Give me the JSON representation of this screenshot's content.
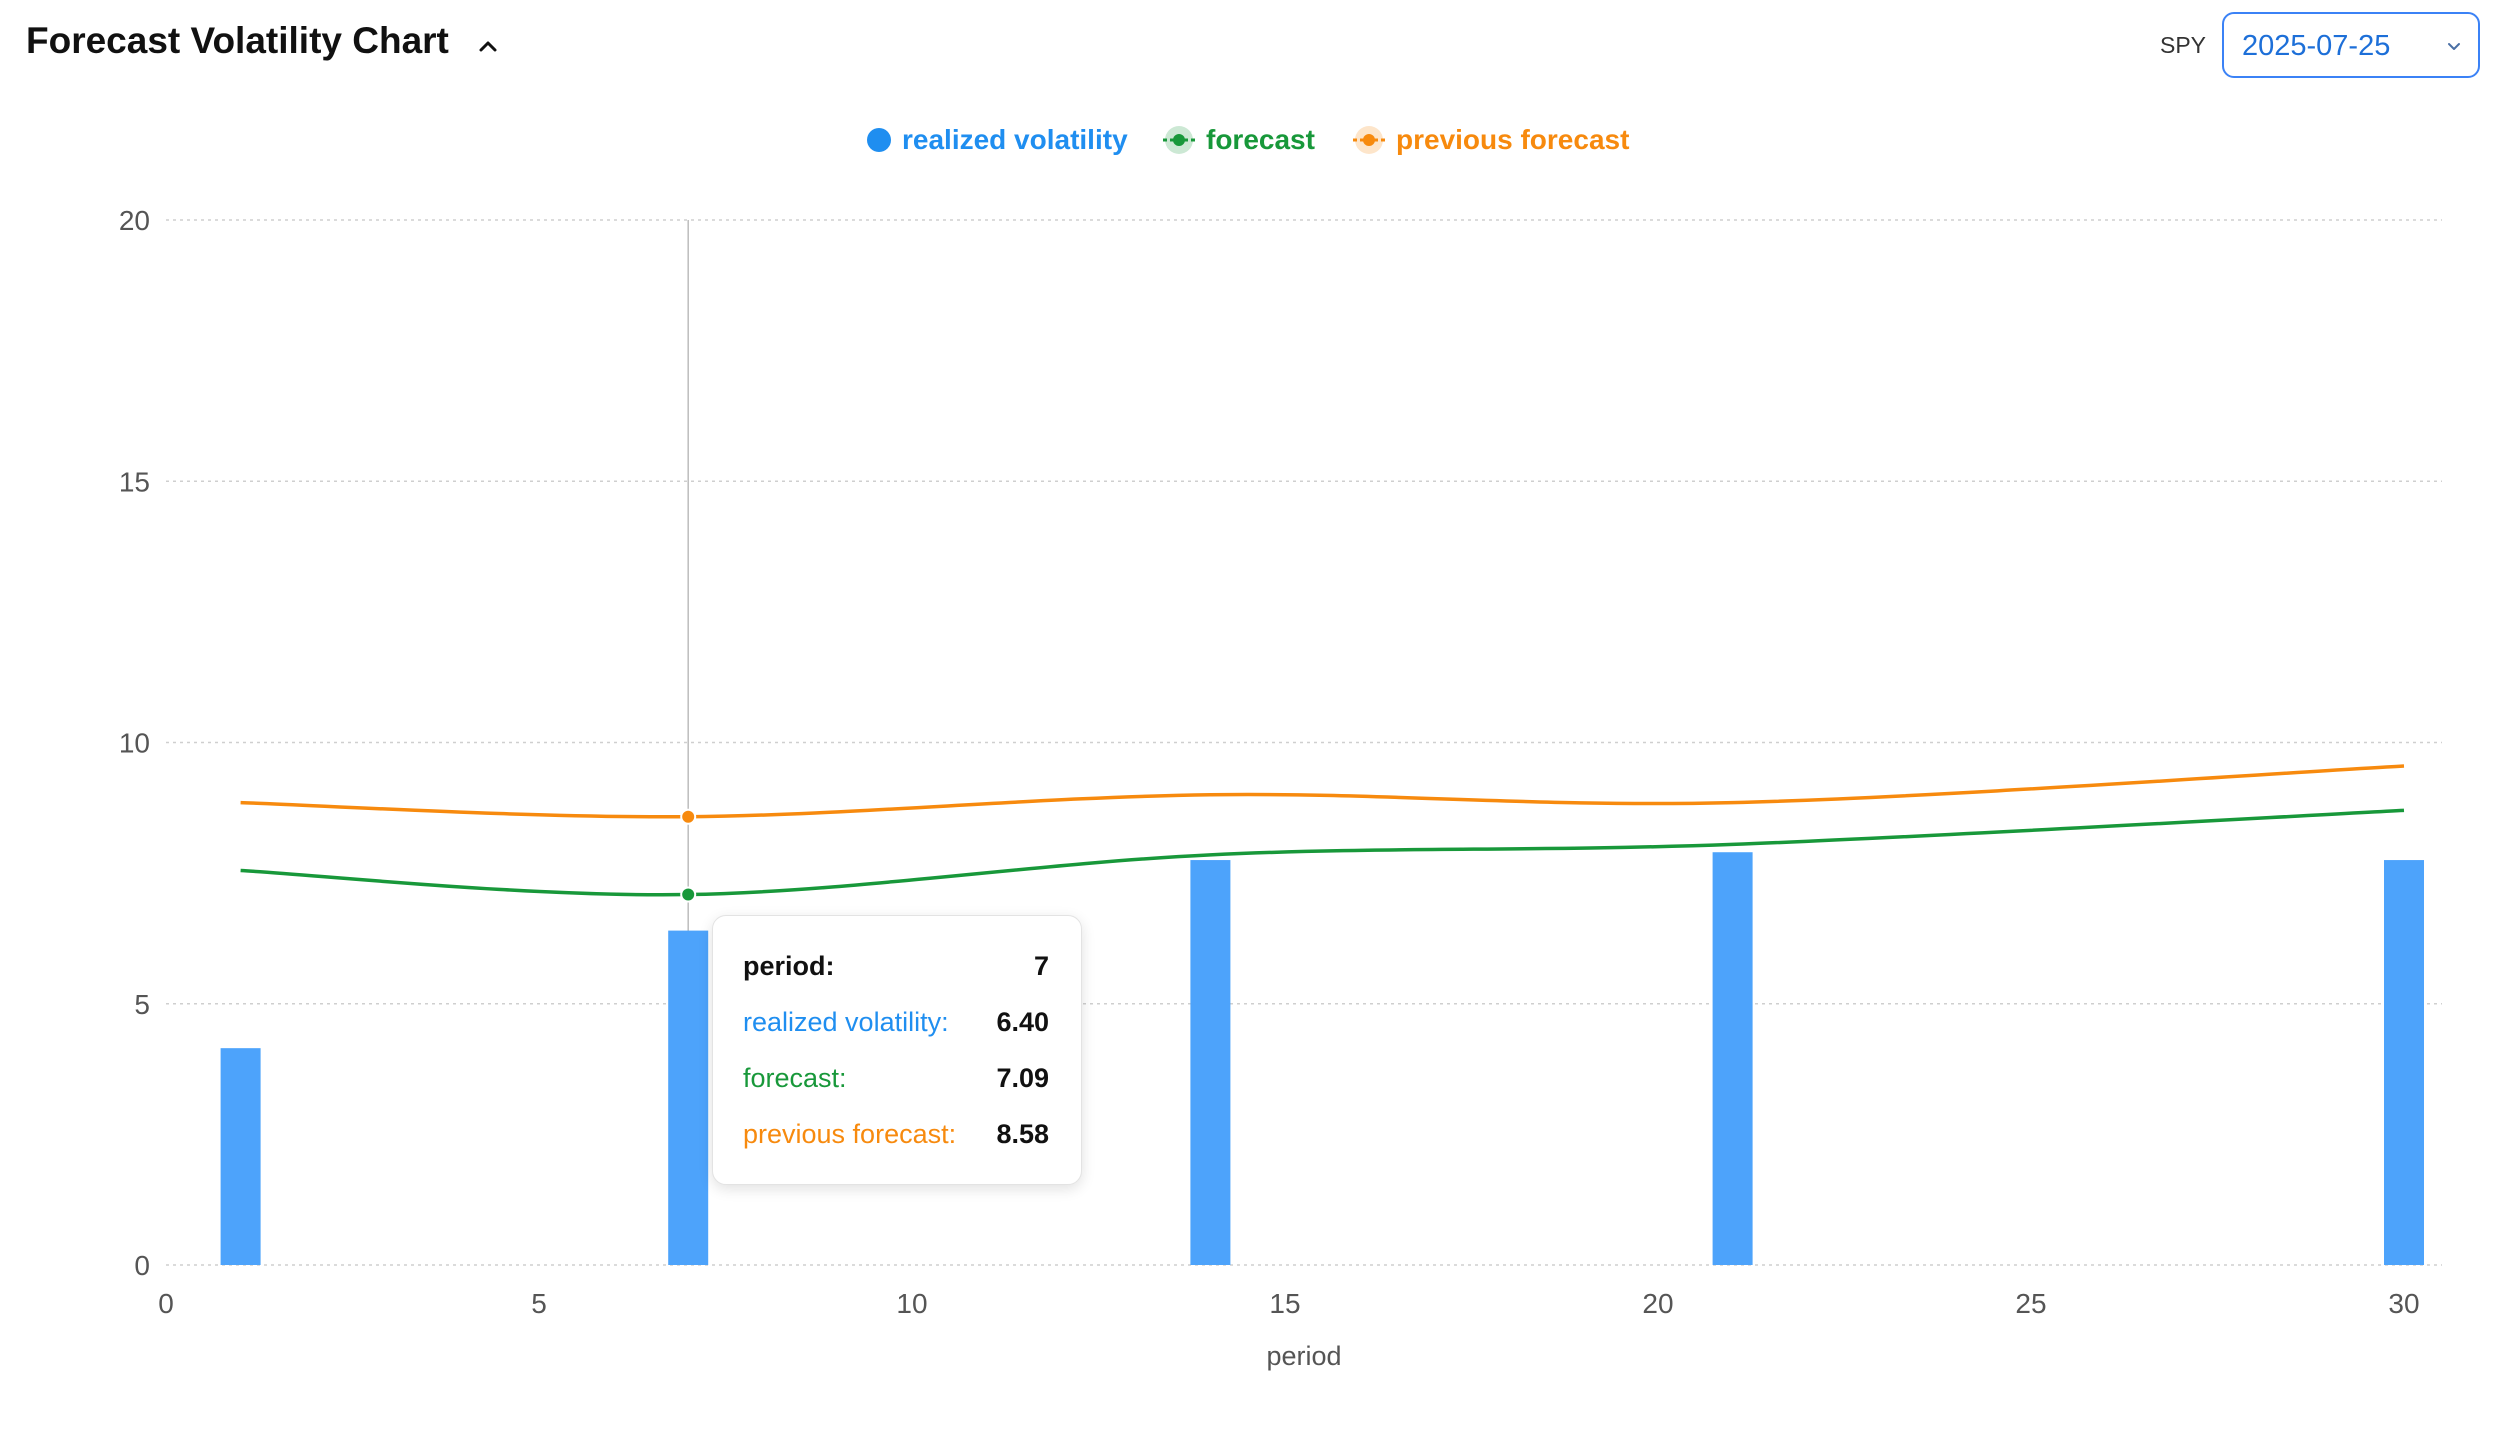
{
  "header": {
    "title": "Forecast Volatility Chart",
    "ticker": "SPY",
    "date_value": "2025-07-25"
  },
  "icons": {
    "collapse": "chevron-up-icon",
    "dropdown": "chevron-down-icon"
  },
  "colors": {
    "realized": "#4da3fb",
    "realized_text": "#1f8ef0",
    "forecast": "#18983a",
    "previous": "#f78a0e",
    "grid": "#cfcfcf",
    "axis_text": "#555555",
    "accent": "#3b82f6"
  },
  "legend": [
    {
      "key": "realized",
      "label": "realized volatility",
      "shape": "circle"
    },
    {
      "key": "forecast",
      "label": "forecast",
      "shape": "line-dot"
    },
    {
      "key": "previous",
      "label": "previous forecast",
      "shape": "line-dot"
    }
  ],
  "tooltip": {
    "period_label": "period:",
    "period_value": "7",
    "realized_label": "realized volatility:",
    "realized_value": "6.40",
    "forecast_label": "forecast:",
    "forecast_value": "7.09",
    "previous_label": "previous forecast:",
    "previous_value": "8.58"
  },
  "chart_data": {
    "type": "bar",
    "xlabel": "period",
    "ylabel": "",
    "xlim": [
      0,
      30.5
    ],
    "ylim": [
      0,
      20
    ],
    "xticks": [
      0,
      5,
      10,
      15,
      20,
      25,
      30
    ],
    "yticks": [
      0,
      5,
      10,
      15,
      20
    ],
    "grid": true,
    "legend_position": "top-center",
    "highlight_x": 7,
    "series": [
      {
        "name": "realized volatility",
        "type": "bar",
        "x": [
          1,
          7,
          14,
          21,
          30
        ],
        "values": [
          4.15,
          6.4,
          7.75,
          7.9,
          7.75
        ]
      },
      {
        "name": "forecast",
        "type": "line",
        "x": [
          1,
          7,
          14,
          21,
          30
        ],
        "values": [
          7.55,
          7.09,
          7.85,
          8.05,
          8.7
        ]
      },
      {
        "name": "previous forecast",
        "type": "line",
        "x": [
          1,
          7,
          14,
          21,
          30
        ],
        "values": [
          8.85,
          8.58,
          9.0,
          8.85,
          9.55
        ]
      }
    ]
  }
}
